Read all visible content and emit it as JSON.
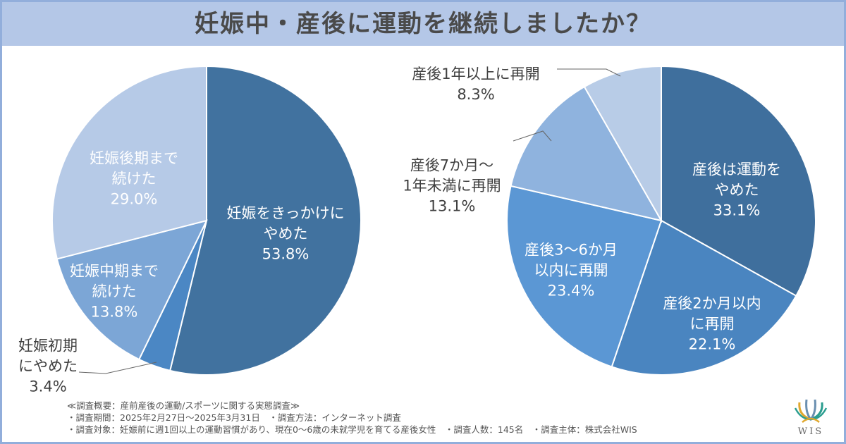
{
  "title": "妊娠中・産後に運動を継続しましたか？",
  "chart_data": [
    {
      "type": "pie",
      "start": "top",
      "direction": "clockwise",
      "slices": [
        {
          "label_lines": [
            "妊娠をきっかけに",
            "やめた"
          ],
          "value": 53.8,
          "value_text": "53.8%",
          "color": "#41729f"
        },
        {
          "label_lines": [
            "妊娠初期",
            "にやめた"
          ],
          "value": 3.4,
          "value_text": "3.4%",
          "color": "#4b87c4"
        },
        {
          "label_lines": [
            "妊娠中期まで",
            "続けた"
          ],
          "value": 13.8,
          "value_text": "13.8%",
          "color": "#7ca6d6"
        },
        {
          "label_lines": [
            "妊娠後期まで",
            "続けた"
          ],
          "value": 29.0,
          "value_text": "29.0%",
          "color": "#b6cae7"
        }
      ]
    },
    {
      "type": "pie",
      "start": "top",
      "direction": "clockwise",
      "slices": [
        {
          "label_lines": [
            "産後は運動を",
            "やめた"
          ],
          "value": 33.1,
          "value_text": "33.1%",
          "color": "#3f6f9d"
        },
        {
          "label_lines": [
            "産後2か月以内",
            "に再開"
          ],
          "value": 22.1,
          "value_text": "22.1%",
          "color": "#4a85c0"
        },
        {
          "label_lines": [
            "産後3〜6か月",
            "以内に再開"
          ],
          "value": 23.4,
          "value_text": "23.4%",
          "color": "#5b97d4"
        },
        {
          "label_lines": [
            "産後7か月〜",
            "1年未満に再開"
          ],
          "value": 13.1,
          "value_text": "13.1%",
          "color": "#8fb3de"
        },
        {
          "label_lines": [
            "産後1年以上に再開"
          ],
          "value": 8.3,
          "value_text": "8.3%",
          "color": "#b8cce7"
        }
      ]
    }
  ],
  "notes": [
    "≪調査概要：産前産後の運動/スポーツに関する実態調査≫",
    "・調査期間：2025年2月27日〜2025年3月31日　・調査方法：インターネット調査",
    "・調査対象：妊娠前に週1回以上の運動習慣があり、現在0〜6歳の未就学児を育てる産後女性　・調査人数：145名　・調査主体：株式会社WIS"
  ],
  "logo": "WIS"
}
